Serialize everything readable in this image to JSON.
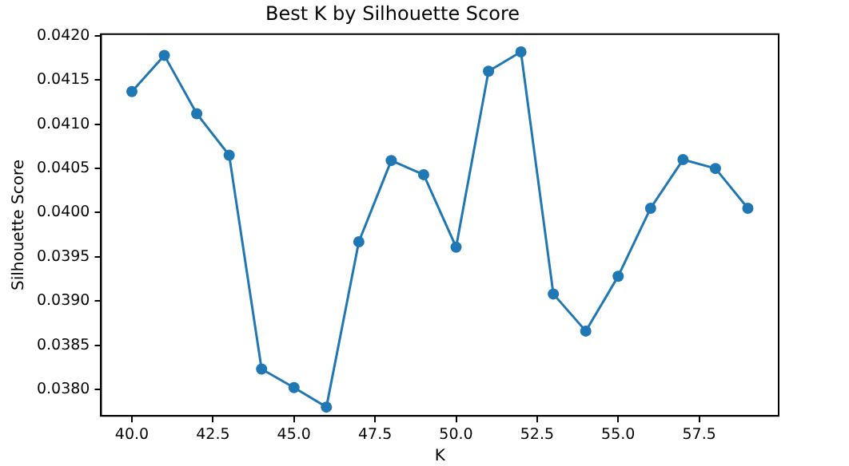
{
  "chart_data": {
    "type": "line",
    "title": "Best K by Silhouette Score",
    "xlabel": "K",
    "ylabel": "Silhouette Score",
    "x": [
      40,
      41,
      42,
      43,
      44,
      45,
      46,
      47,
      48,
      49,
      50,
      51,
      52,
      53,
      54,
      55,
      56,
      57,
      58,
      59
    ],
    "series": [
      {
        "color": "#1f77b4",
        "values": [
          0.04137,
          0.04178,
          0.04112,
          0.04065,
          0.03823,
          0.03802,
          0.0378,
          0.03967,
          0.04059,
          0.04043,
          0.03961,
          0.0416,
          0.04182,
          0.03908,
          0.03866,
          0.03928,
          0.04005,
          0.0406,
          0.0405,
          0.04005
        ]
      }
    ],
    "xlim": [
      39.05,
      59.95
    ],
    "xticks": [
      {
        "value": 40,
        "label": "40.0"
      },
      {
        "value": 42.5,
        "label": "42.5"
      },
      {
        "value": 45,
        "label": "45.0"
      },
      {
        "value": 47.5,
        "label": "47.5"
      },
      {
        "value": 50,
        "label": "50.0"
      },
      {
        "value": 52.5,
        "label": "52.5"
      },
      {
        "value": 55,
        "label": "55.0"
      },
      {
        "value": 57.5,
        "label": "57.5"
      }
    ],
    "ylim": [
      0.0377,
      0.04202
    ],
    "yticks": [
      {
        "value": 0.038,
        "label": "0.0380"
      },
      {
        "value": 0.0385,
        "label": "0.0385"
      },
      {
        "value": 0.039,
        "label": "0.0390"
      },
      {
        "value": 0.0395,
        "label": "0.0395"
      },
      {
        "value": 0.04,
        "label": "0.0400"
      },
      {
        "value": 0.0405,
        "label": "0.0405"
      },
      {
        "value": 0.041,
        "label": "0.0410"
      },
      {
        "value": 0.0415,
        "label": "0.0415"
      },
      {
        "value": 0.042,
        "label": "0.0420"
      }
    ],
    "marker": "circle",
    "grid": false,
    "legend": false
  }
}
